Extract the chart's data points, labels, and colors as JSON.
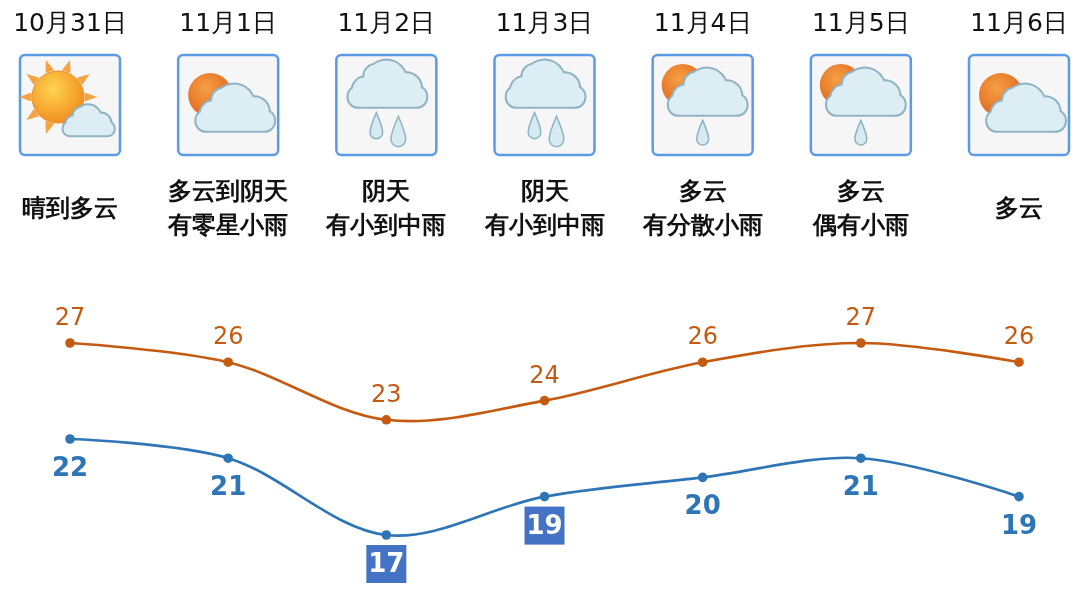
{
  "chart_data": {
    "type": "line",
    "categories": [
      "10月31日",
      "11月1日",
      "11月2日",
      "11月3日",
      "11月4日",
      "11月5日",
      "11月6日"
    ],
    "series": [
      {
        "color": "#c55a11",
        "values": [
          27,
          26,
          23,
          24,
          26,
          27,
          26
        ]
      },
      {
        "color": "#2e75b6",
        "values": [
          22,
          21,
          17,
          19,
          20,
          21,
          19
        ]
      }
    ],
    "data_labels": true,
    "marker": "circle",
    "tick_labels": "x",
    "annotations": [
      "晴到多云",
      "多云到阴天",
      "有零星小雨",
      "阴天",
      "有小到中雨",
      "阴天",
      "有小到中雨",
      "多云",
      "有分散小雨",
      "多云",
      "偶有小雨",
      "多云"
    ]
  }
}
